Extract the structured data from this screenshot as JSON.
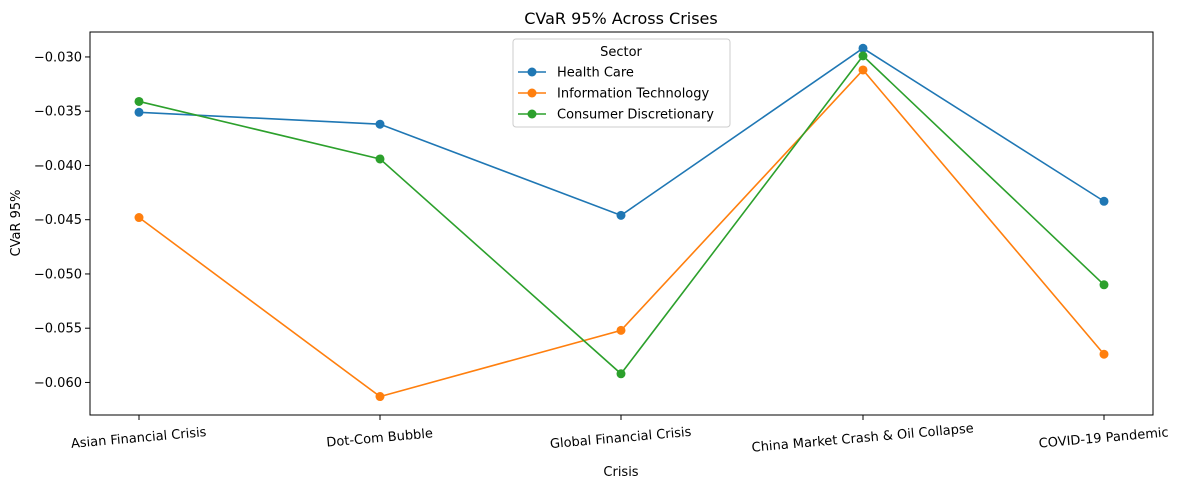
{
  "chart_data": {
    "type": "line",
    "title": "CVaR 95% Across Crises",
    "xlabel": "Crisis",
    "ylabel": "CVaR 95%",
    "categories": [
      "Asian Financial Crisis",
      "Dot-Com Bubble",
      "Global Financial Crisis",
      "China Market Crash & Oil Collapse",
      "COVID-19 Pandemic"
    ],
    "ylim": [
      -0.063,
      -0.0277
    ],
    "yticks": [
      -0.03,
      -0.035,
      -0.04,
      -0.045,
      -0.05,
      -0.055,
      -0.06
    ],
    "ytick_labels": [
      "−0.030",
      "−0.035",
      "−0.040",
      "−0.045",
      "−0.050",
      "−0.055",
      "−0.060"
    ],
    "grid": false,
    "legend": {
      "title": "Sector",
      "placement": "top-center"
    },
    "series": [
      {
        "name": "Health Care",
        "color": "#1f77b4",
        "values": [
          -0.0351,
          -0.0362,
          -0.0446,
          -0.0292,
          -0.0433
        ]
      },
      {
        "name": "Information Technology",
        "color": "#ff7f0e",
        "values": [
          -0.0448,
          -0.0613,
          -0.0552,
          -0.0312,
          -0.0574
        ]
      },
      {
        "name": "Consumer Discretionary",
        "color": "#2ca02c",
        "values": [
          -0.0341,
          -0.0394,
          -0.0592,
          -0.0299,
          -0.051
        ]
      }
    ]
  }
}
